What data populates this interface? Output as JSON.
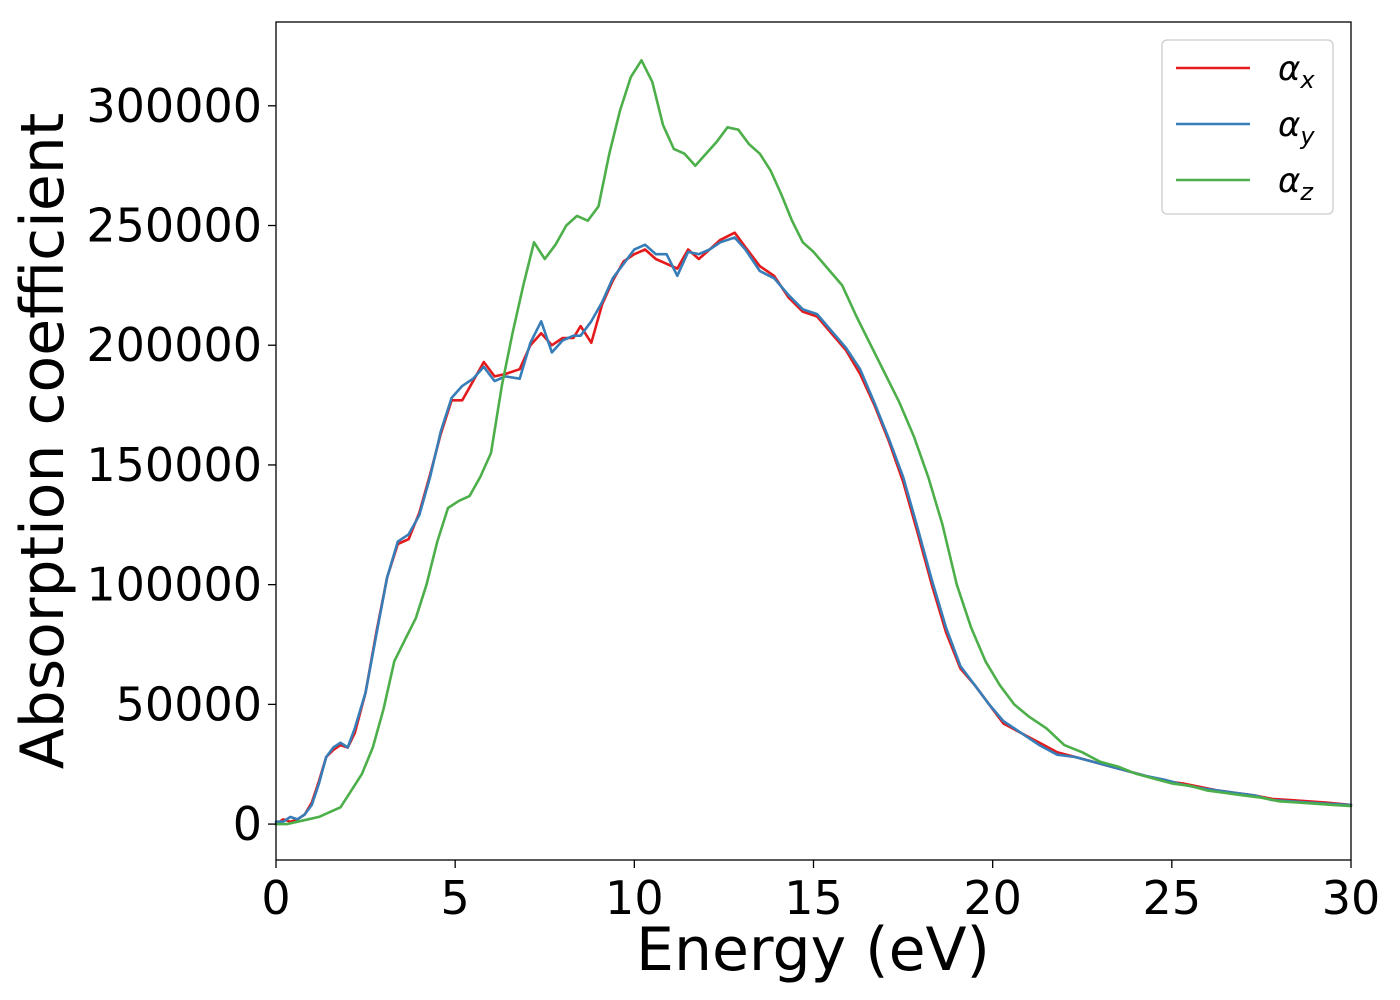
{
  "chart_data": {
    "type": "line",
    "title": "",
    "xlabel": "Energy (eV)",
    "ylabel": "Absorption coefficient",
    "xlim": [
      0,
      30
    ],
    "ylim": [
      -15000,
      335000
    ],
    "xticks": [
      0,
      5,
      10,
      15,
      20,
      25,
      30
    ],
    "xtick_labels": [
      "0",
      "5",
      "10",
      "15",
      "20",
      "25",
      "30"
    ],
    "yticks": [
      0,
      50000,
      100000,
      150000,
      200000,
      250000,
      300000
    ],
    "ytick_labels": [
      "0",
      "50000",
      "100000",
      "150000",
      "200000",
      "250000",
      "300000"
    ],
    "grid": false,
    "legend_position": "top-right",
    "series": [
      {
        "name": "αx",
        "symbol": "α",
        "subscript": "x",
        "color": "#e41a1c",
        "points": [
          [
            0,
            0
          ],
          [
            0.2,
            2000
          ],
          [
            0.4,
            1000
          ],
          [
            0.6,
            2000
          ],
          [
            0.8,
            4000
          ],
          [
            1.0,
            9000
          ],
          [
            1.2,
            18000
          ],
          [
            1.4,
            28000
          ],
          [
            1.6,
            31000
          ],
          [
            1.8,
            33000
          ],
          [
            2.0,
            32000
          ],
          [
            2.2,
            38000
          ],
          [
            2.5,
            55000
          ],
          [
            2.8,
            80000
          ],
          [
            3.1,
            103000
          ],
          [
            3.4,
            117000
          ],
          [
            3.7,
            119000
          ],
          [
            4.0,
            130000
          ],
          [
            4.3,
            146000
          ],
          [
            4.6,
            163000
          ],
          [
            4.9,
            177000
          ],
          [
            5.2,
            177000
          ],
          [
            5.5,
            185000
          ],
          [
            5.8,
            193000
          ],
          [
            6.1,
            187000
          ],
          [
            6.4,
            188000
          ],
          [
            6.8,
            190000
          ],
          [
            7.1,
            200000
          ],
          [
            7.4,
            205000
          ],
          [
            7.7,
            200000
          ],
          [
            8.0,
            203000
          ],
          [
            8.3,
            203000
          ],
          [
            8.5,
            208000
          ],
          [
            8.8,
            201000
          ],
          [
            9.1,
            217000
          ],
          [
            9.4,
            227000
          ],
          [
            9.7,
            235000
          ],
          [
            10.0,
            238000
          ],
          [
            10.3,
            240000
          ],
          [
            10.6,
            236000
          ],
          [
            10.9,
            234000
          ],
          [
            11.2,
            232000
          ],
          [
            11.5,
            240000
          ],
          [
            11.8,
            236000
          ],
          [
            12.1,
            240000
          ],
          [
            12.4,
            244000
          ],
          [
            12.8,
            247000
          ],
          [
            13.1,
            241000
          ],
          [
            13.5,
            233000
          ],
          [
            13.9,
            229000
          ],
          [
            14.3,
            220000
          ],
          [
            14.7,
            214000
          ],
          [
            15.1,
            212000
          ],
          [
            15.5,
            205000
          ],
          [
            15.9,
            198000
          ],
          [
            16.3,
            188000
          ],
          [
            16.7,
            175000
          ],
          [
            17.1,
            160000
          ],
          [
            17.5,
            143000
          ],
          [
            17.9,
            122000
          ],
          [
            18.3,
            100000
          ],
          [
            18.7,
            80000
          ],
          [
            19.1,
            65000
          ],
          [
            19.5,
            58000
          ],
          [
            19.9,
            50000
          ],
          [
            20.3,
            42000
          ],
          [
            20.8,
            38000
          ],
          [
            21.3,
            34000
          ],
          [
            21.8,
            30000
          ],
          [
            22.3,
            28000
          ],
          [
            22.8,
            26000
          ],
          [
            23.3,
            24000
          ],
          [
            23.8,
            22000
          ],
          [
            24.3,
            20000
          ],
          [
            24.8,
            18000
          ],
          [
            25.3,
            17000
          ],
          [
            25.8,
            15500
          ],
          [
            26.3,
            14000
          ],
          [
            26.8,
            13000
          ],
          [
            27.3,
            12000
          ],
          [
            27.8,
            10500
          ],
          [
            28.3,
            10000
          ],
          [
            28.8,
            9500
          ],
          [
            29.3,
            9000
          ],
          [
            30.0,
            8000
          ]
        ]
      },
      {
        "name": "αy",
        "symbol": "α",
        "subscript": "y",
        "color": "#377eb8",
        "points": [
          [
            0,
            1000
          ],
          [
            0.2,
            1000
          ],
          [
            0.4,
            3000
          ],
          [
            0.6,
            2000
          ],
          [
            0.8,
            4000
          ],
          [
            1.0,
            8000
          ],
          [
            1.2,
            17000
          ],
          [
            1.4,
            28000
          ],
          [
            1.6,
            32000
          ],
          [
            1.8,
            34000
          ],
          [
            2.0,
            32000
          ],
          [
            2.2,
            40000
          ],
          [
            2.5,
            55000
          ],
          [
            2.8,
            79000
          ],
          [
            3.1,
            103000
          ],
          [
            3.4,
            118000
          ],
          [
            3.7,
            121000
          ],
          [
            4.0,
            129000
          ],
          [
            4.3,
            145000
          ],
          [
            4.6,
            164000
          ],
          [
            4.9,
            178000
          ],
          [
            5.2,
            183000
          ],
          [
            5.5,
            186000
          ],
          [
            5.8,
            191000
          ],
          [
            6.1,
            185000
          ],
          [
            6.4,
            187000
          ],
          [
            6.8,
            186000
          ],
          [
            7.1,
            201000
          ],
          [
            7.4,
            210000
          ],
          [
            7.7,
            197000
          ],
          [
            8.0,
            202000
          ],
          [
            8.3,
            204000
          ],
          [
            8.5,
            204000
          ],
          [
            8.8,
            210000
          ],
          [
            9.1,
            218000
          ],
          [
            9.4,
            228000
          ],
          [
            9.7,
            234000
          ],
          [
            10.0,
            240000
          ],
          [
            10.3,
            242000
          ],
          [
            10.6,
            238000
          ],
          [
            10.9,
            238000
          ],
          [
            11.2,
            229000
          ],
          [
            11.5,
            239000
          ],
          [
            11.8,
            238000
          ],
          [
            12.1,
            240000
          ],
          [
            12.4,
            243000
          ],
          [
            12.8,
            245000
          ],
          [
            13.1,
            240000
          ],
          [
            13.5,
            231000
          ],
          [
            13.9,
            228000
          ],
          [
            14.3,
            221000
          ],
          [
            14.7,
            215000
          ],
          [
            15.1,
            213000
          ],
          [
            15.5,
            206000
          ],
          [
            15.9,
            199000
          ],
          [
            16.3,
            190000
          ],
          [
            16.7,
            176000
          ],
          [
            17.1,
            161000
          ],
          [
            17.5,
            145000
          ],
          [
            17.9,
            124000
          ],
          [
            18.3,
            102000
          ],
          [
            18.7,
            82000
          ],
          [
            19.1,
            66000
          ],
          [
            19.5,
            58000
          ],
          [
            19.9,
            50000
          ],
          [
            20.3,
            43000
          ],
          [
            20.8,
            38000
          ],
          [
            21.3,
            33000
          ],
          [
            21.8,
            29000
          ],
          [
            22.3,
            28000
          ],
          [
            22.8,
            26000
          ],
          [
            23.3,
            24000
          ],
          [
            23.8,
            22000
          ],
          [
            24.3,
            20000
          ],
          [
            24.8,
            18500
          ],
          [
            25.3,
            16500
          ],
          [
            25.8,
            15000
          ],
          [
            26.3,
            14000
          ],
          [
            26.8,
            13000
          ],
          [
            27.3,
            12000
          ],
          [
            27.8,
            10000
          ],
          [
            28.3,
            9500
          ],
          [
            28.8,
            9000
          ],
          [
            29.3,
            8500
          ],
          [
            30.0,
            8000
          ]
        ]
      },
      {
        "name": "αz",
        "symbol": "α",
        "subscript": "z",
        "color": "#4daf4a",
        "points": [
          [
            0,
            0
          ],
          [
            0.3,
            0
          ],
          [
            0.6,
            1000
          ],
          [
            0.9,
            2000
          ],
          [
            1.2,
            3000
          ],
          [
            1.5,
            5000
          ],
          [
            1.8,
            7000
          ],
          [
            2.1,
            14000
          ],
          [
            2.4,
            21000
          ],
          [
            2.7,
            32000
          ],
          [
            3.0,
            48000
          ],
          [
            3.3,
            68000
          ],
          [
            3.6,
            77000
          ],
          [
            3.9,
            86000
          ],
          [
            4.2,
            100000
          ],
          [
            4.5,
            118000
          ],
          [
            4.8,
            132000
          ],
          [
            5.1,
            135000
          ],
          [
            5.4,
            137000
          ],
          [
            5.7,
            145000
          ],
          [
            6.0,
            155000
          ],
          [
            6.3,
            183000
          ],
          [
            6.6,
            205000
          ],
          [
            6.9,
            225000
          ],
          [
            7.2,
            243000
          ],
          [
            7.5,
            236000
          ],
          [
            7.8,
            242000
          ],
          [
            8.1,
            250000
          ],
          [
            8.4,
            254000
          ],
          [
            8.7,
            252000
          ],
          [
            9.0,
            258000
          ],
          [
            9.3,
            280000
          ],
          [
            9.6,
            298000
          ],
          [
            9.9,
            312000
          ],
          [
            10.2,
            319000
          ],
          [
            10.5,
            310000
          ],
          [
            10.8,
            292000
          ],
          [
            11.1,
            282000
          ],
          [
            11.4,
            280000
          ],
          [
            11.7,
            275000
          ],
          [
            12.0,
            280000
          ],
          [
            12.3,
            285000
          ],
          [
            12.6,
            291000
          ],
          [
            12.9,
            290000
          ],
          [
            13.2,
            284000
          ],
          [
            13.5,
            280000
          ],
          [
            13.8,
            273000
          ],
          [
            14.1,
            263000
          ],
          [
            14.4,
            252000
          ],
          [
            14.7,
            243000
          ],
          [
            15.0,
            239000
          ],
          [
            15.4,
            232000
          ],
          [
            15.8,
            225000
          ],
          [
            16.2,
            212000
          ],
          [
            16.6,
            200000
          ],
          [
            17.0,
            188000
          ],
          [
            17.4,
            176000
          ],
          [
            17.8,
            162000
          ],
          [
            18.2,
            145000
          ],
          [
            18.6,
            125000
          ],
          [
            19.0,
            100000
          ],
          [
            19.4,
            82000
          ],
          [
            19.8,
            68000
          ],
          [
            20.2,
            58000
          ],
          [
            20.6,
            50000
          ],
          [
            21.0,
            45000
          ],
          [
            21.5,
            40000
          ],
          [
            22.0,
            33000
          ],
          [
            22.5,
            30000
          ],
          [
            23.0,
            26000
          ],
          [
            23.5,
            24000
          ],
          [
            24.0,
            21000
          ],
          [
            24.5,
            19000
          ],
          [
            25.0,
            17000
          ],
          [
            25.5,
            16000
          ],
          [
            26.0,
            14000
          ],
          [
            26.5,
            13000
          ],
          [
            27.0,
            12000
          ],
          [
            27.5,
            11000
          ],
          [
            28.0,
            9500
          ],
          [
            28.5,
            9000
          ],
          [
            29.0,
            8500
          ],
          [
            29.5,
            8000
          ],
          [
            30.0,
            7500
          ]
        ]
      }
    ]
  }
}
